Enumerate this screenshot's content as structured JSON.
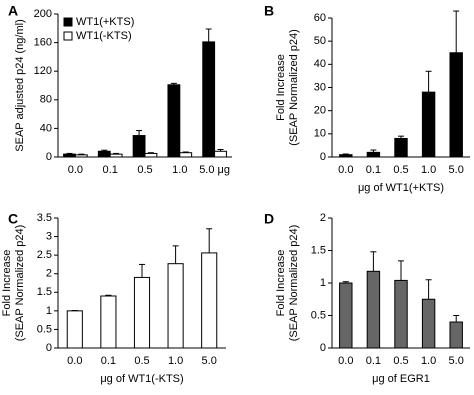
{
  "chart_data": [
    {
      "type": "bar",
      "label": "A",
      "ylabel": [
        "SEAP adjusted p24 (ng/ml)"
      ],
      "categories": [
        "0.0",
        "0.1",
        "0.5",
        "1.0",
        "5.0 μg"
      ],
      "series": [
        {
          "name": "WT1(+KTS)",
          "color": "#000000",
          "values": [
            4,
            8,
            30,
            101,
            161
          ],
          "errors": [
            1,
            1.5,
            7,
            2,
            18
          ]
        },
        {
          "name": "WT1(-KTS)",
          "color": "#ffffff",
          "values": [
            3,
            4,
            5,
            6,
            8
          ],
          "errors": [
            1,
            1,
            1,
            1,
            2.5
          ]
        }
      ],
      "ylim": [
        0,
        200
      ],
      "yticks": [
        0,
        40,
        80,
        120,
        160,
        200
      ],
      "legend": "upper left"
    },
    {
      "type": "bar",
      "label": "B",
      "ylabel": [
        "Fold Increase",
        "(SEAP Normalized p24)"
      ],
      "xlabel": "μg of WT1(+KTS)",
      "categories": [
        "0.0",
        "0.1",
        "0.5",
        "1.0",
        "5.0"
      ],
      "series": [
        {
          "color": "#000000",
          "values": [
            1,
            2,
            8,
            28,
            45
          ],
          "errors": [
            0.3,
            1,
            1,
            9,
            18
          ]
        }
      ],
      "ylim": [
        0,
        60
      ],
      "yticks": [
        0,
        10,
        20,
        30,
        40,
        50,
        60
      ]
    },
    {
      "type": "bar",
      "label": "C",
      "ylabel": [
        "Fold Increase",
        "(SEAP Normalized p24)"
      ],
      "xlabel": "μg of WT1(-KTS)",
      "categories": [
        "0.0",
        "0.1",
        "0.5",
        "1.0",
        "5.0"
      ],
      "series": [
        {
          "color": "#ffffff",
          "values": [
            1.0,
            1.4,
            1.9,
            2.27,
            2.56
          ],
          "errors": [
            0.01,
            0.02,
            0.35,
            0.48,
            0.65
          ]
        }
      ],
      "ylim": [
        0,
        3.5
      ],
      "yticks": [
        0,
        0.5,
        1,
        1.5,
        2,
        2.5,
        3,
        3.5
      ]
    },
    {
      "type": "bar",
      "label": "D",
      "ylabel": [
        "Fold Increase",
        "(SEAP Normalized p24)"
      ],
      "xlabel": "μg of EGR1",
      "categories": [
        "0.0",
        "0.1",
        "0.5",
        "1.0",
        "5.0"
      ],
      "series": [
        {
          "color": "#666666",
          "values": [
            1.0,
            1.18,
            1.04,
            0.75,
            0.4
          ],
          "errors": [
            0.02,
            0.3,
            0.3,
            0.3,
            0.1
          ]
        }
      ],
      "ylim": [
        0,
        2
      ],
      "yticks": [
        0,
        0.5,
        1,
        1.5,
        2
      ]
    }
  ]
}
